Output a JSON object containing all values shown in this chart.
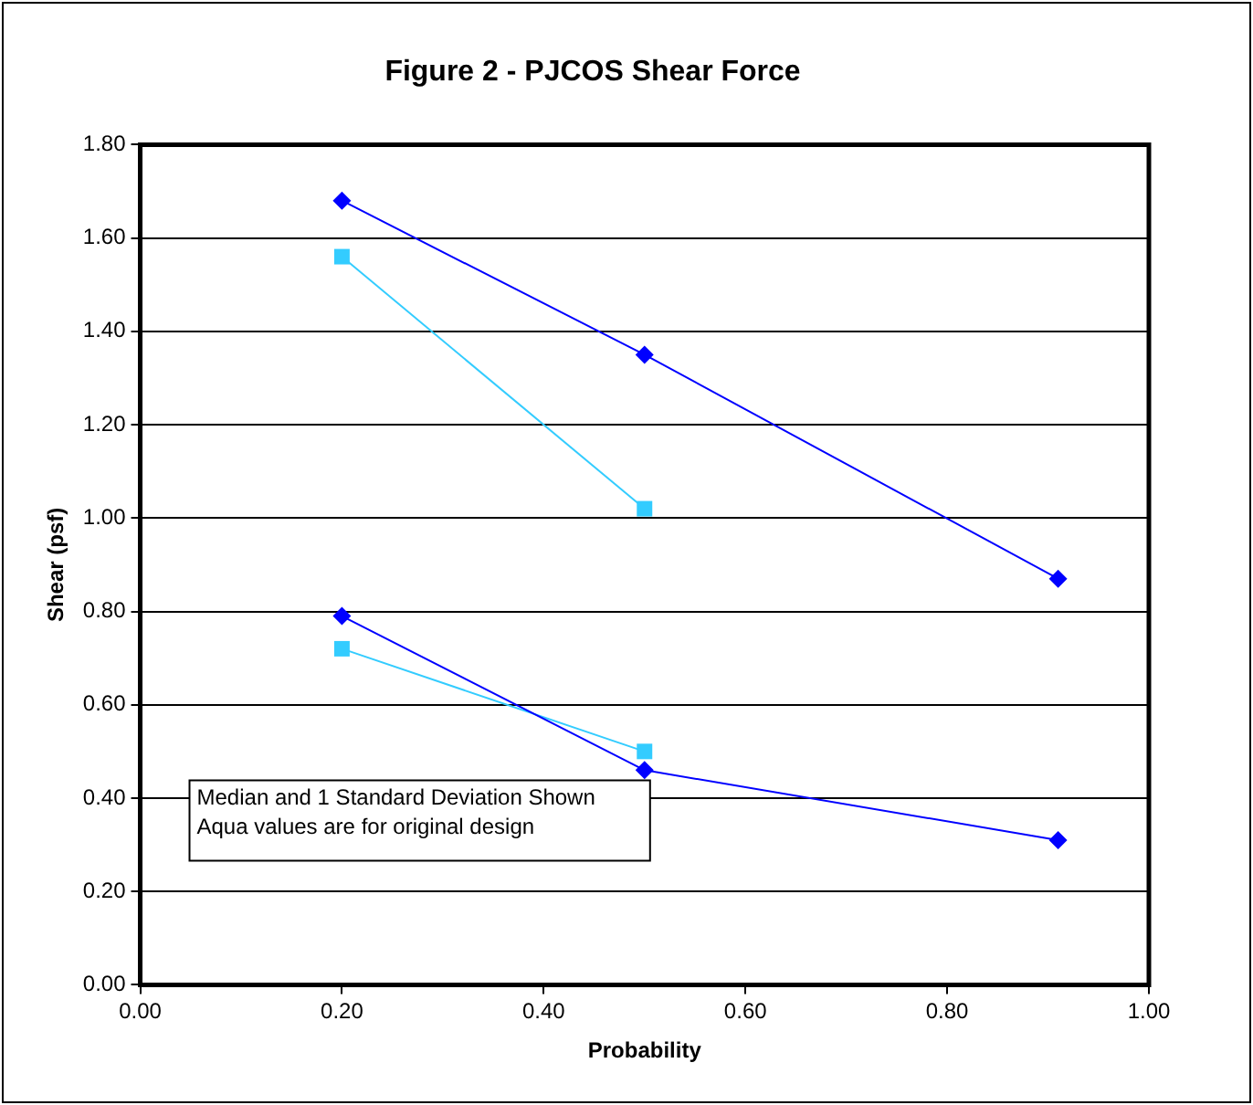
{
  "chart_data": {
    "type": "line",
    "title": "Figure 2 - PJCOS Shear Force",
    "xlabel": "Probability",
    "ylabel": "Shear (psf)",
    "series": [
      {
        "color": "#0000ff",
        "marker": "diamond",
        "x": [
          0.2,
          0.5,
          0.91
        ],
        "values": [
          1.68,
          1.35,
          0.87
        ]
      },
      {
        "color": "#33ccff",
        "marker": "square",
        "x": [
          0.2,
          0.5
        ],
        "values": [
          1.56,
          1.02
        ]
      },
      {
        "color": "#0000ff",
        "marker": "diamond",
        "x": [
          0.2,
          0.5,
          0.91
        ],
        "values": [
          0.79,
          0.46,
          0.31
        ]
      },
      {
        "color": "#33ccff",
        "marker": "square",
        "x": [
          0.2,
          0.5
        ],
        "values": [
          0.72,
          0.5
        ]
      }
    ],
    "xlim": [
      0,
      1
    ],
    "xticks": [
      {
        "value": 0,
        "label": "0.00"
      },
      {
        "value": 0.2,
        "label": "0.20"
      },
      {
        "value": 0.4,
        "label": "0.40"
      },
      {
        "value": 0.6,
        "label": "0.60"
      },
      {
        "value": 0.8,
        "label": "0.80"
      },
      {
        "value": 1,
        "label": "1.00"
      }
    ],
    "ylim": [
      0,
      1.8
    ],
    "yticks": [
      {
        "value": 0,
        "label": "0.00"
      },
      {
        "value": 0.2,
        "label": "0.20"
      },
      {
        "value": 0.4,
        "label": "0.40"
      },
      {
        "value": 0.6,
        "label": "0.60"
      },
      {
        "value": 0.8,
        "label": "0.80"
      },
      {
        "value": 1,
        "label": "1.00"
      },
      {
        "value": 1.2,
        "label": "1.20"
      },
      {
        "value": 1.4,
        "label": "1.40"
      },
      {
        "value": 1.6,
        "label": "1.60"
      },
      {
        "value": 1.8,
        "label": "1.80"
      }
    ],
    "grid": "y",
    "legend": false,
    "annotations": [
      "Median and 1 Standard Deviation Shown",
      "Aqua values are for original design"
    ]
  }
}
